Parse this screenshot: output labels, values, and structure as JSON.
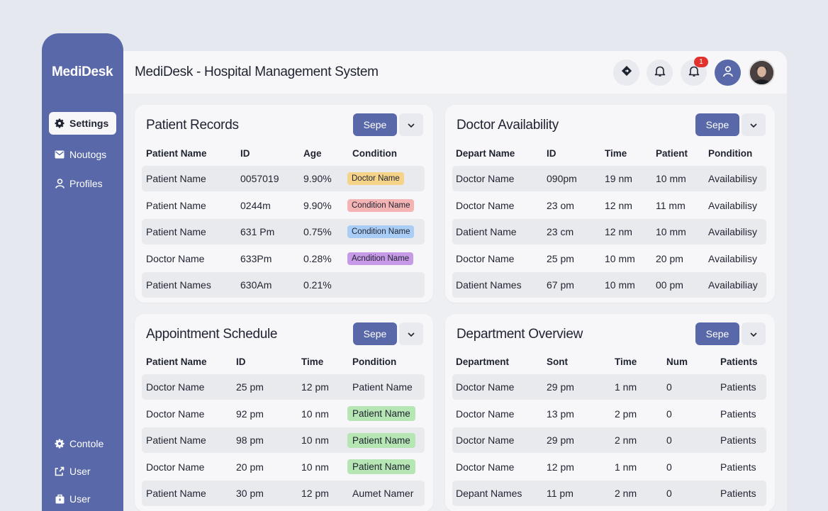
{
  "sidebar": {
    "brand": "MediDesk",
    "top_items": [
      {
        "label": "Settings",
        "icon": "gear-icon"
      },
      {
        "label": "Noutogs",
        "icon": "mail-icon"
      },
      {
        "label": "Profiles",
        "icon": "person-icon"
      }
    ],
    "bottom_items": [
      {
        "label": "Contole",
        "icon": "gear-icon"
      },
      {
        "label": "User",
        "icon": "export-icon"
      },
      {
        "label": "User",
        "icon": "bag-icon"
      }
    ]
  },
  "header": {
    "title": "MediDesk - Hospital Management System",
    "notification_count": "1"
  },
  "panels": {
    "patient_records": {
      "title": "Patient Records",
      "button": "Sepe",
      "columns": [
        "Patient Name",
        "ID",
        "Age",
        "Condition"
      ],
      "rows": [
        [
          "Patient Name",
          "0057019",
          "9.90%",
          "Doctor Name"
        ],
        [
          "Patient Name",
          "0244m",
          "9.90%",
          "Condition Name"
        ],
        [
          "Patient Name",
          "631 Pm",
          "0.75%",
          "Condition Name"
        ],
        [
          "Doctor Name",
          "633Pm",
          "0.28%",
          "Acndition Name"
        ],
        [
          "Patient Names",
          "630Am",
          "0.21%",
          ""
        ]
      ],
      "pill_colors": [
        "#f5d48a",
        "#f4b4b4",
        "#a9cdf5",
        "#c79ae8"
      ]
    },
    "doctor_availability": {
      "title": "Doctor Availability",
      "button": "Sepe",
      "columns": [
        "Depart Name",
        "ID",
        "Time",
        "Patient",
        "Pondition"
      ],
      "rows": [
        [
          "Doctor Name",
          "090pm",
          "19 nm",
          "10 mm",
          "Availabilisy"
        ],
        [
          "Doctor Name",
          "23 om",
          "12 nm",
          "11 mm",
          "Availabilisy"
        ],
        [
          "Datient Name",
          "23 cm",
          "12 nm",
          "10 mm",
          "Availabilisy"
        ],
        [
          "Doctor Name",
          "25 pm",
          "10 mm",
          "20 pm",
          "Availabilisy"
        ],
        [
          "Datient Names",
          "67 pm",
          "10 mm",
          "00 pm",
          "Availabiliay"
        ]
      ]
    },
    "appointment_schedule": {
      "title": "Appointment Schedule",
      "button": "Sepe",
      "columns": [
        "Patient Name",
        "ID",
        "Time",
        "Pondition"
      ],
      "rows": [
        [
          "Doctor Name",
          "25 pm",
          "12 pm",
          "Patient Name"
        ],
        [
          "Doctor Name",
          "92 pm",
          "10 nm",
          "Patient Name"
        ],
        [
          "Patient Name",
          "98 pm",
          "10 nm",
          "Patient Name"
        ],
        [
          "Doctor Name",
          "20 pm",
          "10 nm",
          "Patient Name"
        ],
        [
          "Patient Name",
          "30 pm",
          "12 pm",
          "Aumet Namer"
        ]
      ],
      "pill_color": "#b6e6b3"
    },
    "department_overview": {
      "title": "Department Overview",
      "button": "Sepe",
      "columns": [
        "Department",
        "Sont",
        "Time",
        "Num",
        "Patients"
      ],
      "rows": [
        [
          "Doctor Name",
          "29 pm",
          "1 nm",
          "0",
          "Patients"
        ],
        [
          "Doctor Name",
          "13 pm",
          "2 pm",
          "0",
          "Patients"
        ],
        [
          "Doctor Name",
          "29 pm",
          "2 nm",
          "0",
          "Patients"
        ],
        [
          "Doctor Name",
          "12 pm",
          "1 nm",
          "0",
          "Patients"
        ],
        [
          "Depant Names",
          "11 pm",
          "2 nm",
          "0",
          "Patients"
        ]
      ]
    }
  }
}
